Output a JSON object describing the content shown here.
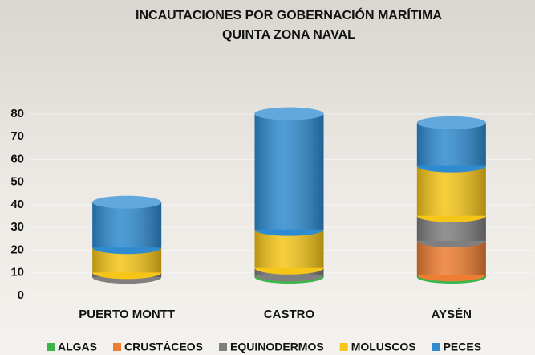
{
  "chart_data": {
    "type": "bar",
    "stacked": true,
    "title": "INCAUTACIONES POR GOBERNACIÓN MARÍTIMA",
    "subtitle": "QUINTA ZONA NAVAL",
    "categories": [
      "PUERTO MONTT",
      "CASTRO",
      "AYSÉN"
    ],
    "series": [
      {
        "name": "ALGAS",
        "color": "#3cb54a",
        "values": [
          0,
          1,
          1
        ]
      },
      {
        "name": "CRUSTÁCEOS",
        "color": "#ed7d31",
        "values": [
          0,
          0,
          15
        ]
      },
      {
        "name": "EQUINODERMOS",
        "color": "#7f7f7f",
        "values": [
          2,
          3,
          11
        ]
      },
      {
        "name": "MOLUSCOS",
        "color": "#f5c518",
        "values": [
          11,
          17,
          22
        ]
      },
      {
        "name": "PECES",
        "color": "#2e8bd0",
        "values": [
          20,
          51,
          19
        ]
      }
    ],
    "ylim": [
      0,
      80
    ],
    "yticks": [
      0,
      10,
      20,
      30,
      40,
      50,
      60,
      70,
      80
    ],
    "grid": true,
    "legend": "bottom"
  }
}
